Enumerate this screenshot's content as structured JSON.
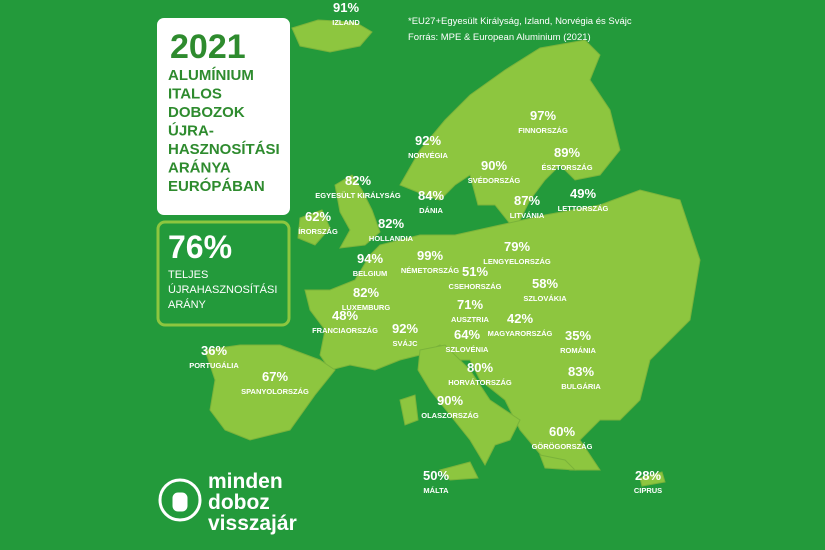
{
  "title": {
    "year": "2021",
    "lines": [
      "ALUMÍNIUM",
      "ITALOS",
      "DOBOZOK",
      "ÚJRA-",
      "HASZNOSÍTÁSI",
      "ARÁNYA",
      "EURÓPÁBAN"
    ]
  },
  "total": {
    "value": "76%",
    "lines": [
      "TELJES",
      "ÚJRAHASZNOSÍTÁSI",
      "ARÁNY"
    ]
  },
  "footnote": [
    "*EU27+Egyesült Királyság, Izland, Norvégia és Svájc",
    "Forrás: MPE & European Aluminium (2021)"
  ],
  "countries": [
    {
      "rate": "91%",
      "name": "IZLAND"
    },
    {
      "rate": "92%",
      "name": "NORVÉGIA"
    },
    {
      "rate": "97%",
      "name": "FINNORSZÁG"
    },
    {
      "rate": "90%",
      "name": "SVÉDORSZÁG"
    },
    {
      "rate": "89%",
      "name": "ÉSZTORSZÁG"
    },
    {
      "rate": "82%",
      "name": "EGYESÜLT KIRÁLYSÁG"
    },
    {
      "rate": "84%",
      "name": "DÁNIA"
    },
    {
      "rate": "87%",
      "name": "LITVÁNIA"
    },
    {
      "rate": "49%",
      "name": "LETTORSZÁG"
    },
    {
      "rate": "62%",
      "name": "ÍRORSZÁG"
    },
    {
      "rate": "82%",
      "name": "HOLLANDIA"
    },
    {
      "rate": "94%",
      "name": "BELGIUM"
    },
    {
      "rate": "99%",
      "name": "NÉMETORSZÁG"
    },
    {
      "rate": "79%",
      "name": "LENGYELORSZÁG"
    },
    {
      "rate": "51%",
      "name": "CSEHORSZÁG"
    },
    {
      "rate": "58%",
      "name": "SZLOVÁKIA"
    },
    {
      "rate": "82%",
      "name": "LUXEMBURG"
    },
    {
      "rate": "71%",
      "name": "AUSZTRIA"
    },
    {
      "rate": "48%",
      "name": "FRANCIAORSZÁG"
    },
    {
      "rate": "92%",
      "name": "SVÁJC"
    },
    {
      "rate": "42%",
      "name": "MAGYARORSZÁG"
    },
    {
      "rate": "64%",
      "name": "SZLOVÉNIA"
    },
    {
      "rate": "35%",
      "name": "ROMÁNIA"
    },
    {
      "rate": "36%",
      "name": "PORTUGÁLIA"
    },
    {
      "rate": "80%",
      "name": "HORVÁTORSZÁG"
    },
    {
      "rate": "83%",
      "name": "BULGÁRIA"
    },
    {
      "rate": "67%",
      "name": "SPANYOLORSZÁG"
    },
    {
      "rate": "90%",
      "name": "OLASZORSZÁG"
    },
    {
      "rate": "60%",
      "name": "GÖRÖGORSZÁG"
    },
    {
      "rate": "50%",
      "name": "MÁLTA"
    },
    {
      "rate": "28%",
      "name": "CIPRUS"
    }
  ],
  "logo": [
    "minden",
    "doboz",
    "visszajár"
  ]
}
